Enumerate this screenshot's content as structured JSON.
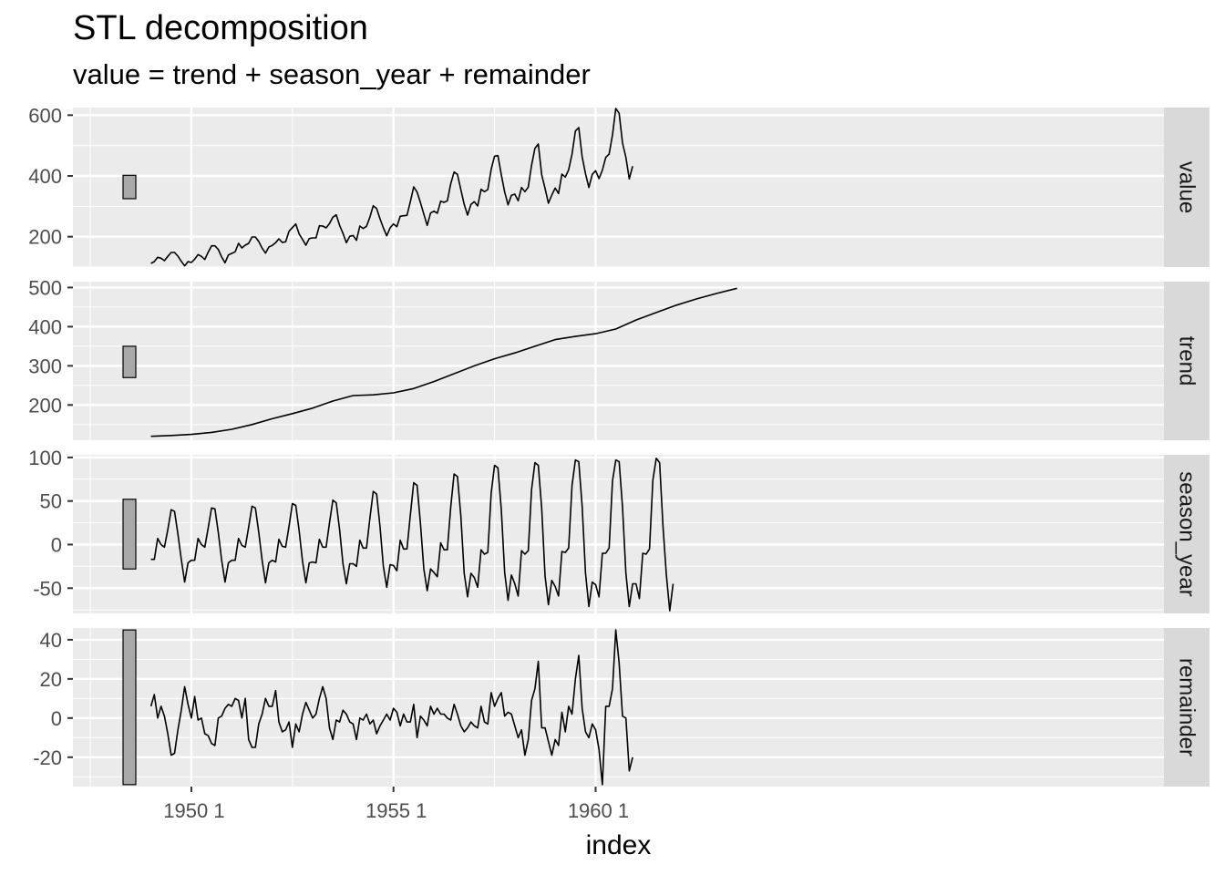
{
  "chart_data": {
    "type": "line",
    "title": "STL decomposition",
    "subtitle": "value = trend + season_year + remainder",
    "xlabel": "index",
    "x_start": "1949 Jan",
    "x_end": "1960 Dec",
    "frequency": "monthly",
    "x_ticks": [
      {
        "year": 1950,
        "label": "1950  1"
      },
      {
        "year": 1955,
        "label": "1955  1"
      },
      {
        "year": 1960,
        "label": "1960  1"
      }
    ],
    "facets": [
      {
        "name": "value",
        "ylim": [
          100,
          625
        ],
        "yticks": [
          200,
          400,
          600
        ],
        "range_bar": [
          325,
          402
        ],
        "values": [
          112,
          118,
          132,
          129,
          121,
          135,
          148,
          148,
          136,
          119,
          104,
          118,
          115,
          126,
          141,
          135,
          125,
          149,
          170,
          170,
          158,
          133,
          114,
          140,
          145,
          150,
          178,
          163,
          172,
          178,
          199,
          199,
          184,
          162,
          146,
          166,
          171,
          180,
          193,
          181,
          183,
          218,
          230,
          242,
          209,
          191,
          172,
          194,
          196,
          196,
          236,
          235,
          229,
          243,
          264,
          272,
          237,
          211,
          180,
          201,
          204,
          188,
          235,
          227,
          234,
          264,
          302,
          293,
          259,
          229,
          203,
          229,
          242,
          233,
          267,
          269,
          270,
          315,
          364,
          347,
          312,
          274,
          237,
          278,
          284,
          277,
          317,
          313,
          318,
          374,
          413,
          405,
          355,
          306,
          271,
          306,
          315,
          301,
          356,
          348,
          355,
          422,
          465,
          467,
          404,
          347,
          305,
          336,
          340,
          318,
          362,
          348,
          363,
          435,
          491,
          505,
          404,
          359,
          310,
          337,
          360,
          342,
          406,
          396,
          420,
          472,
          548,
          559,
          463,
          407,
          362,
          405,
          417,
          391,
          419,
          461,
          472,
          535,
          622,
          606,
          508,
          461,
          390,
          432
        ]
      },
      {
        "name": "trend",
        "ylim": [
          110,
          515
        ],
        "yticks": [
          200,
          300,
          400,
          500
        ],
        "range_bar": [
          270,
          350
        ],
        "anchors": [
          [
            0,
            120
          ],
          [
            6,
            122
          ],
          [
            12,
            125
          ],
          [
            18,
            130
          ],
          [
            24,
            138
          ],
          [
            30,
            150
          ],
          [
            36,
            165
          ],
          [
            42,
            178
          ],
          [
            48,
            192
          ],
          [
            54,
            210
          ],
          [
            60,
            224
          ],
          [
            66,
            226
          ],
          [
            72,
            231
          ],
          [
            78,
            242
          ],
          [
            84,
            260
          ],
          [
            90,
            280
          ],
          [
            96,
            300
          ],
          [
            102,
            318
          ],
          [
            108,
            333
          ],
          [
            114,
            350
          ],
          [
            120,
            367
          ],
          [
            126,
            375
          ],
          [
            132,
            382
          ],
          [
            138,
            394
          ],
          [
            144,
            417
          ],
          [
            150,
            436
          ],
          [
            156,
            455
          ],
          [
            162,
            471
          ],
          [
            168,
            485
          ],
          [
            174,
            498
          ]
        ]
      },
      {
        "name": "season_year",
        "ylim": [
          -79,
          103
        ],
        "yticks": [
          -50,
          0,
          50,
          100
        ],
        "range_bar": [
          -28,
          52
        ],
        "values": [
          -17,
          -17,
          7,
          0,
          -3,
          17,
          40,
          38,
          12,
          -17,
          -43,
          -21,
          -18,
          -18,
          7,
          0,
          -3,
          19,
          42,
          41,
          14,
          -18,
          -43,
          -21,
          -18,
          -18,
          7,
          -1,
          -3,
          20,
          44,
          42,
          14,
          -18,
          -44,
          -21,
          -18,
          -20,
          6,
          -2,
          -3,
          21,
          47,
          45,
          16,
          -19,
          -44,
          -21,
          -20,
          -21,
          6,
          -3,
          -3,
          25,
          51,
          48,
          17,
          -22,
          -45,
          -22,
          -22,
          -25,
          5,
          -4,
          -4,
          30,
          61,
          58,
          21,
          -25,
          -49,
          -23,
          -24,
          -30,
          5,
          -5,
          -5,
          34,
          71,
          68,
          24,
          -28,
          -53,
          -28,
          -32,
          -37,
          2,
          -6,
          -6,
          43,
          81,
          78,
          33,
          -33,
          -60,
          -33,
          -38,
          -49,
          -6,
          -11,
          -9,
          59,
          91,
          88,
          40,
          -32,
          -64,
          -35,
          -45,
          -59,
          -7,
          -11,
          -7,
          63,
          94,
          91,
          42,
          -36,
          -69,
          -41,
          -48,
          -59,
          -8,
          -9,
          -4,
          68,
          97,
          95,
          44,
          -33,
          -71,
          -43,
          -46,
          -60,
          -10,
          -10,
          -4,
          73,
          97,
          95,
          43,
          -33,
          -71,
          -45,
          -45,
          -62,
          -10,
          -11,
          -5,
          74,
          99,
          94,
          21,
          -35,
          -76,
          -45
        ]
      },
      {
        "name": "remainder",
        "ylim": [
          -35,
          46
        ],
        "yticks": [
          -20,
          0,
          20,
          40
        ],
        "range_bar": [
          -34,
          45
        ],
        "values": [
          6,
          12,
          0,
          6,
          1,
          -8,
          -19,
          -18,
          -6,
          4,
          16,
          7,
          0,
          11,
          -1,
          0,
          -8,
          -9,
          -13,
          -14,
          0,
          1,
          5,
          7,
          6,
          10,
          9,
          0,
          10,
          -11,
          -15,
          -15,
          -3,
          2,
          10,
          6,
          6,
          14,
          -2,
          -7,
          -6,
          -2,
          -15,
          -3,
          -7,
          2,
          8,
          4,
          0,
          2,
          10,
          16,
          10,
          -5,
          -11,
          -1,
          -2,
          4,
          2,
          -2,
          -3,
          -11,
          0,
          -1,
          2,
          -3,
          -1,
          -8,
          -4,
          -1,
          2,
          -1,
          5,
          3,
          -4,
          2,
          -2,
          -2,
          7,
          -10,
          1,
          -1,
          -4,
          6,
          2,
          5,
          2,
          2,
          0,
          -1,
          7,
          2,
          -4,
          -7,
          -5,
          -2,
          -4,
          -5,
          6,
          -2,
          -3,
          13,
          6,
          10,
          13,
          1,
          3,
          2,
          -4,
          -10,
          -6,
          -19,
          -11,
          9,
          15,
          29,
          -5,
          -5,
          -12,
          -19,
          -11,
          -14,
          3,
          -7,
          6,
          2,
          20,
          32,
          5,
          -7,
          -10,
          -3,
          -6,
          -16,
          -34,
          6,
          6,
          15,
          45,
          28,
          1,
          0,
          -27,
          -20
        ]
      }
    ]
  }
}
